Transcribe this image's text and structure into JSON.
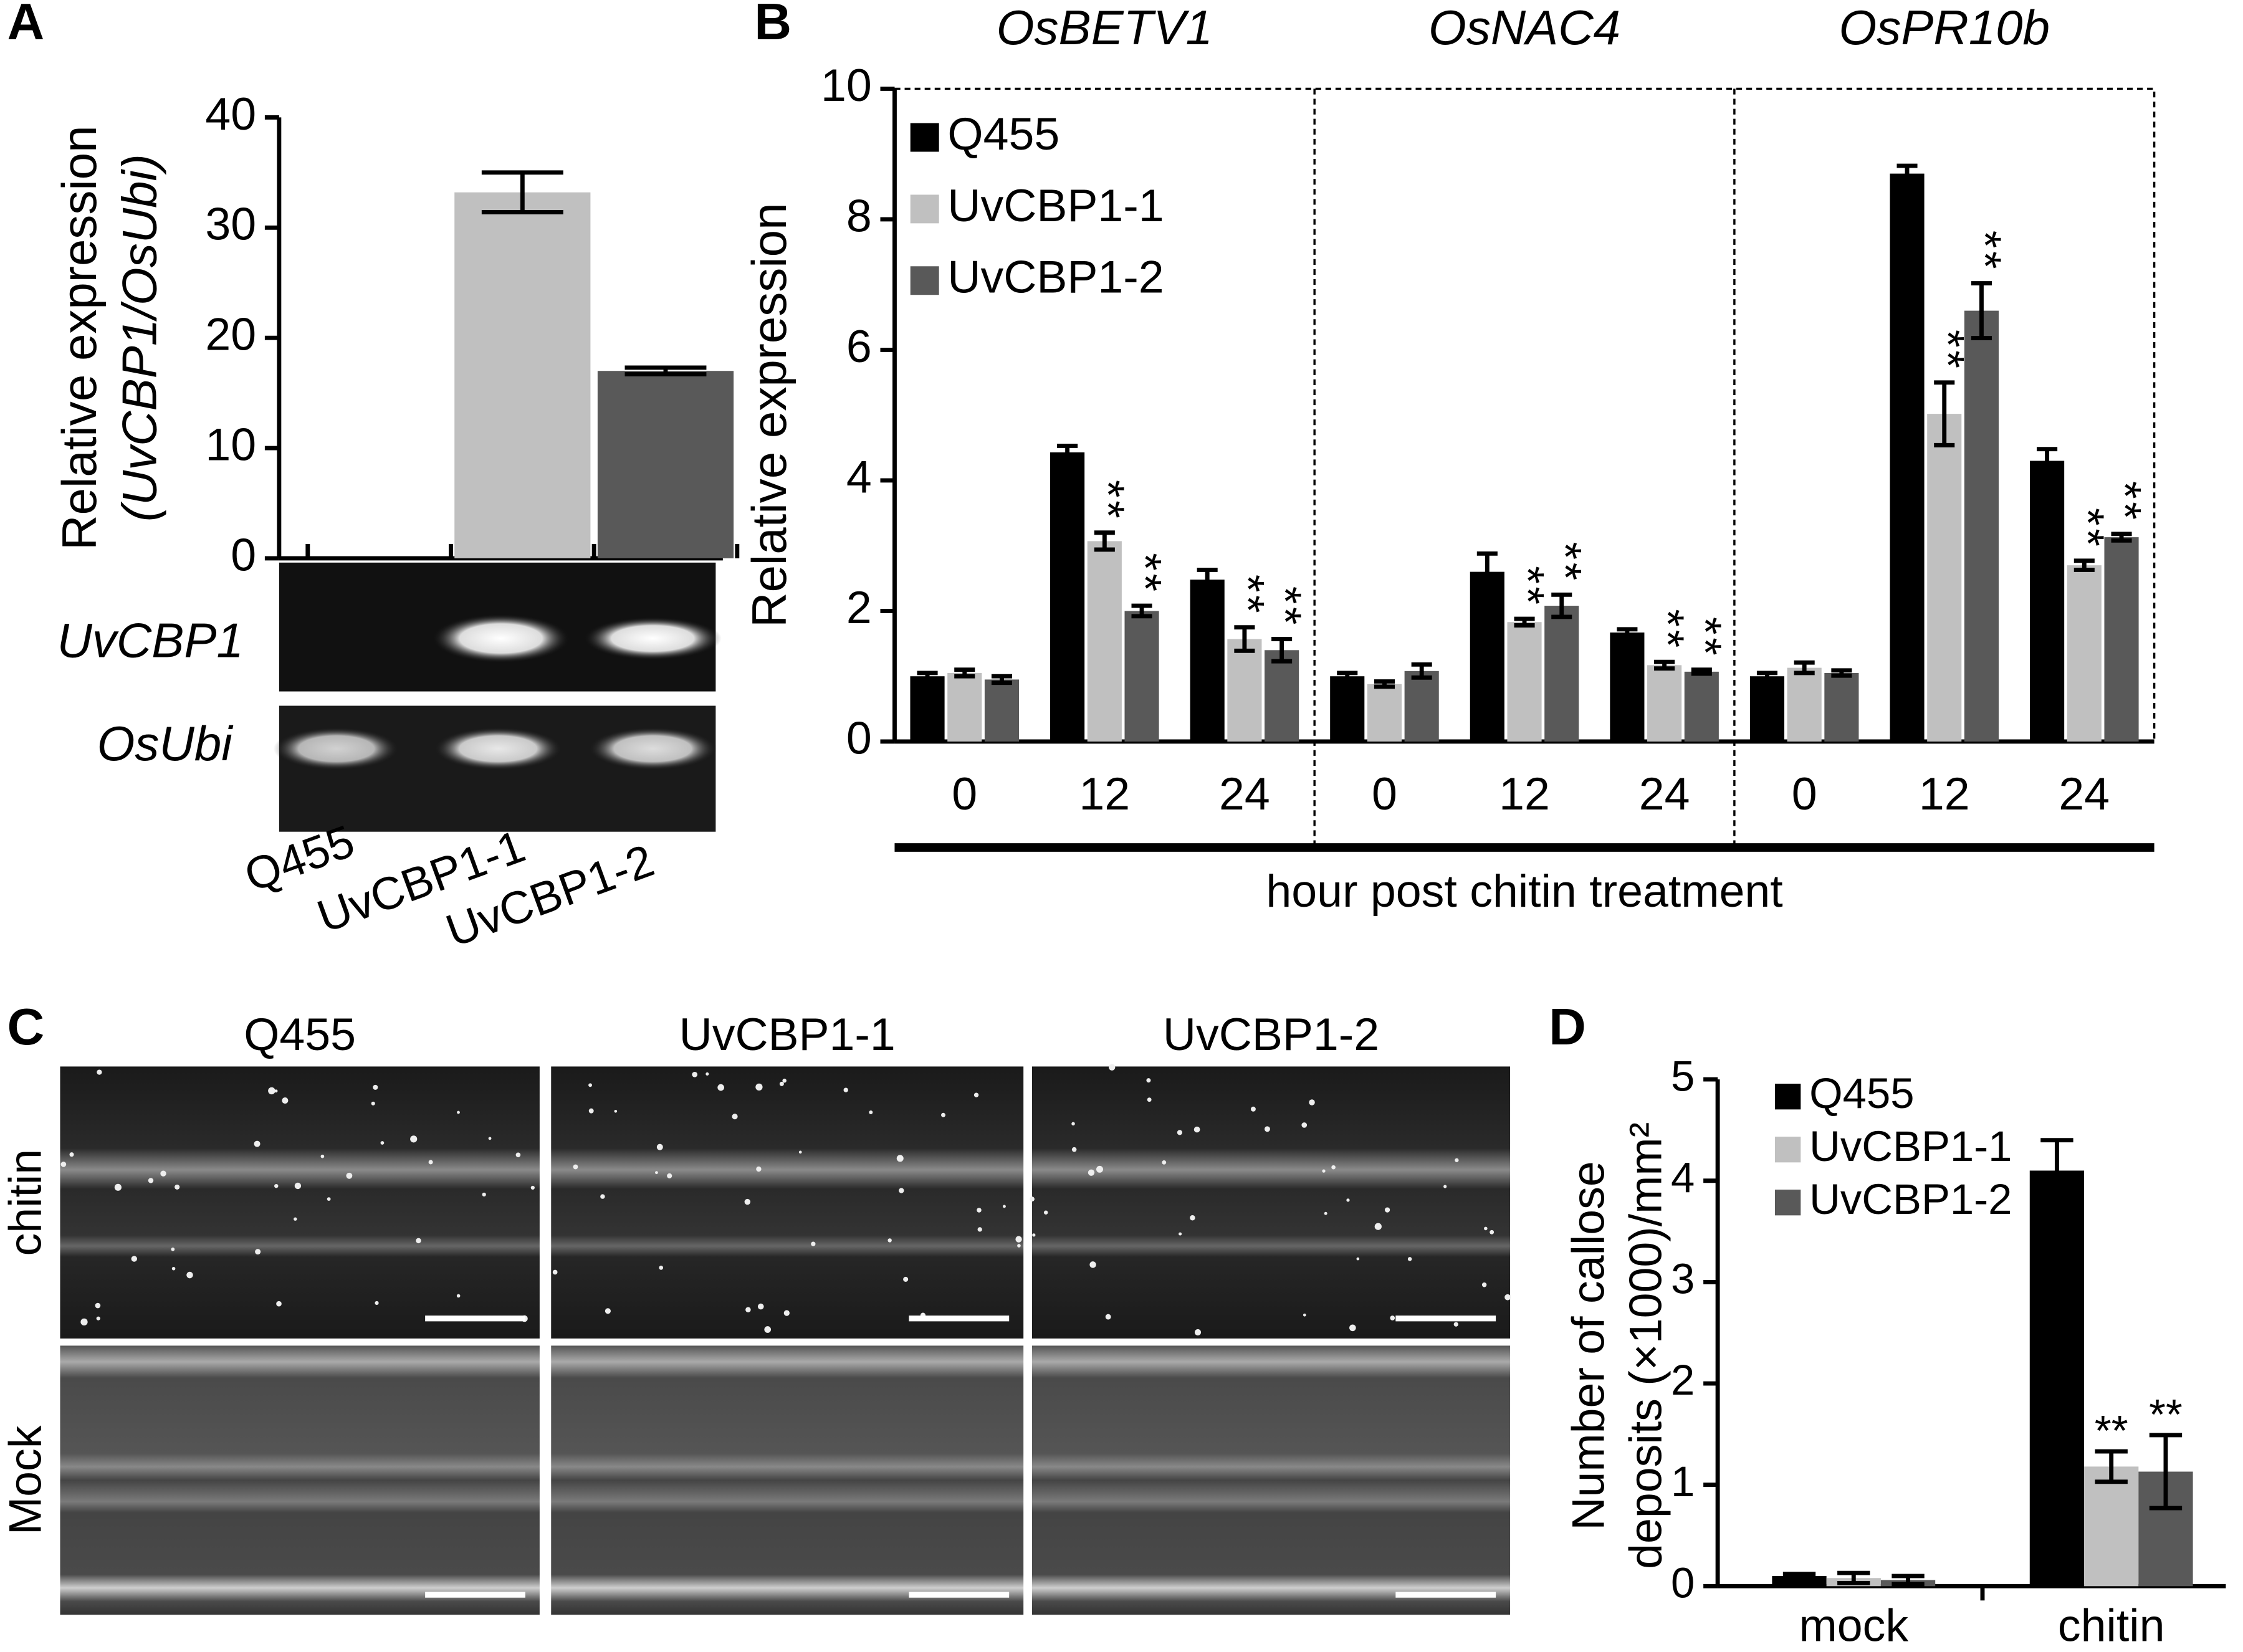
{
  "chart_data": [
    {
      "type": "bar",
      "panel_label": "A",
      "categories": [
        "Q455",
        "UvCBP1-1",
        "UvCBP1-2"
      ],
      "values": [
        0,
        33.2,
        17.0
      ],
      "errors": [
        null,
        1.8,
        0.3
      ],
      "colors": [
        "#000000",
        "#c0c0c0",
        "#595959"
      ],
      "ylabel": [
        "Relative expression",
        "(UvCBP1/OsUbi)"
      ],
      "ylim": [
        0,
        40
      ],
      "yticks": [
        0,
        10,
        20,
        30,
        40
      ],
      "gel_rows": [
        "UvCBP1",
        "OsUbi"
      ]
    },
    {
      "type": "bar",
      "panel_label": "B",
      "groups": [
        "OsBETV1",
        "OsNAC4",
        "OsPR10b"
      ],
      "categories": [
        "0",
        "12",
        "24",
        "0",
        "12",
        "24",
        "0",
        "12",
        "24"
      ],
      "series": [
        {
          "name": "Q455",
          "color": "#000000",
          "values": [
            1.0,
            4.43,
            2.48,
            1.0,
            2.6,
            1.67,
            1.0,
            8.7,
            4.3
          ],
          "errors": [
            0.05,
            0.1,
            0.15,
            0.05,
            0.28,
            0.05,
            0.05,
            0.12,
            0.18
          ],
          "significance": [
            null,
            null,
            null,
            null,
            null,
            null,
            null,
            null,
            null
          ]
        },
        {
          "name": "UvCBP1-1",
          "color": "#c0c0c0",
          "values": [
            1.05,
            3.07,
            1.57,
            0.88,
            1.83,
            1.17,
            1.13,
            5.02,
            2.7
          ],
          "errors": [
            0.05,
            0.13,
            0.18,
            0.04,
            0.05,
            0.05,
            0.08,
            0.48,
            0.07
          ],
          "significance": [
            null,
            "**",
            "**",
            null,
            "**",
            "**",
            null,
            "**",
            "**"
          ]
        },
        {
          "name": "UvCBP1-2",
          "color": "#595959",
          "values": [
            0.95,
            2.0,
            1.4,
            1.08,
            2.08,
            1.07,
            1.05,
            6.6,
            3.13
          ],
          "errors": [
            0.05,
            0.08,
            0.17,
            0.1,
            0.17,
            0.03,
            0.04,
            0.42,
            0.05
          ],
          "significance": [
            null,
            "**",
            "**",
            null,
            "**",
            "**",
            null,
            "**",
            "**"
          ]
        }
      ],
      "ylabel": "Relative expression",
      "xlabel": "hour post chitin treatment",
      "ylim": [
        0,
        10
      ],
      "yticks": [
        0,
        2,
        4,
        6,
        8,
        10
      ],
      "legend": "upper left"
    },
    {
      "type": "bar",
      "panel_label": "D",
      "categories": [
        "mock",
        "chitin"
      ],
      "series": [
        {
          "name": "Q455",
          "color": "#000000",
          "values": [
            0.1,
            4.1
          ],
          "errors": [
            0.02,
            0.3
          ],
          "significance": [
            null,
            null
          ]
        },
        {
          "name": "UvCBP1-1",
          "color": "#c0c0c0",
          "values": [
            0.08,
            1.18
          ],
          "errors": [
            0.05,
            0.15
          ],
          "significance": [
            null,
            "**"
          ]
        },
        {
          "name": "UvCBP1-2",
          "color": "#595959",
          "values": [
            0.06,
            1.13
          ],
          "errors": [
            0.04,
            0.36
          ],
          "significance": [
            null,
            "**"
          ]
        }
      ],
      "ylabel": [
        "Number of callose",
        "deposits (×1000)/mm²"
      ],
      "ylim": [
        0,
        5
      ],
      "yticks": [
        0,
        1,
        2,
        3,
        4,
        5
      ],
      "legend": "upper left"
    }
  ],
  "image_panel": {
    "panel_label": "C",
    "columns": [
      "Q455",
      "UvCBP1-1",
      "UvCBP1-2"
    ],
    "rows": [
      "chitin",
      "Mock"
    ]
  }
}
